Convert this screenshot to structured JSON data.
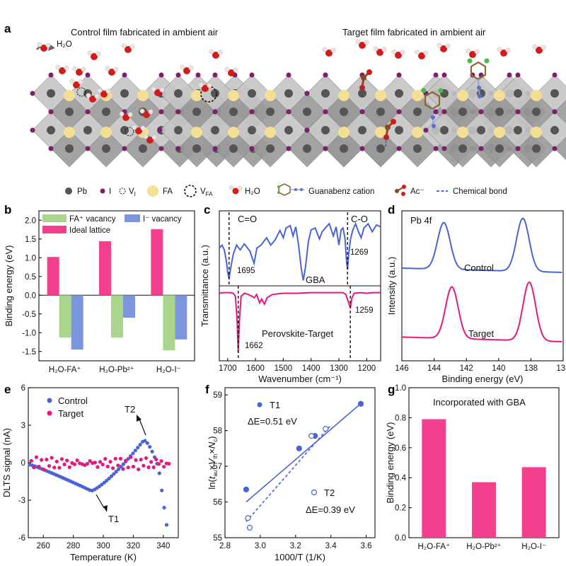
{
  "panel_letters": {
    "a": "a",
    "b": "b",
    "c": "c",
    "d": "d",
    "e": "e",
    "f": "f",
    "g": "g"
  },
  "panel_a": {
    "control_title": "Control film fabricated in ambient air",
    "target_title": "Target film fabricated in ambient air",
    "h2o_label": "H₂O",
    "legend": {
      "pb": "Pb",
      "i": "I",
      "vi": "V",
      "vi_sub": "I",
      "fa": "FA",
      "vfa": "V",
      "vfa_sub": "FA",
      "h2o": "H₂O",
      "guanabenz": "Guanabenz cation",
      "ac": "Ac⁻",
      "bond": "Chemical bond"
    },
    "colors": {
      "pb": "#555555",
      "i": "#7d1f6e",
      "fa": "#f4df95",
      "o": "#d21b1b",
      "h": "#f2e1e1",
      "c": "#8a4a22"
    }
  },
  "chart_data": [
    {
      "panel": "b",
      "type": "bar",
      "ylabel": "Binding energy (eV)",
      "ylim": [
        -1.75,
        2.25
      ],
      "yticks": [
        "2.0",
        "1.5",
        "1.0",
        "0.5",
        "0.0",
        "-0.5",
        "-1.0",
        "-1.5"
      ],
      "categories": [
        "H₂O-FA⁺",
        "H₂O-Pb²⁺",
        "H₂O-I⁻"
      ],
      "series": [
        {
          "name": "Ideal lattice",
          "color": "#f43f8e",
          "values": [
            1.02,
            1.44,
            1.76
          ]
        },
        {
          "name": "FA⁺ vacancy",
          "color": "#a9d68c",
          "values": [
            -1.13,
            -1.13,
            -1.47
          ]
        },
        {
          "name": "I⁻ vacancy",
          "color": "#7b96dd",
          "values": [
            -1.45,
            -0.6,
            -1.18
          ]
        }
      ],
      "legend": [
        "FA⁺ vacancy",
        "I⁻ vacancy",
        "Ideal lattice"
      ]
    },
    {
      "panel": "c",
      "type": "line",
      "xlabel": "Wavenumber (cm⁻¹)",
      "ylabel": "Transmittance (a.u.)",
      "xlim": [
        1730,
        1150
      ],
      "xticks": [
        "1700",
        "1600",
        "1500",
        "1400",
        "1300",
        "1200"
      ],
      "annotations": [
        "C=O",
        "C-O",
        "1695",
        "1269",
        "1662",
        "1259"
      ],
      "series": [
        {
          "name": "GBA",
          "color": "#4a63d6",
          "points": [
            [
              1730,
              0.55
            ],
            [
              1720,
              0.6
            ],
            [
              1712,
              0.52
            ],
            [
              1705,
              0.35
            ],
            [
              1700,
              0.15
            ],
            [
              1695,
              0.05
            ],
            [
              1690,
              0.2
            ],
            [
              1680,
              0.45
            ],
            [
              1668,
              0.6
            ],
            [
              1655,
              0.52
            ],
            [
              1640,
              0.62
            ],
            [
              1620,
              0.5
            ],
            [
              1605,
              0.3
            ],
            [
              1595,
              0.55
            ],
            [
              1580,
              0.6
            ],
            [
              1560,
              0.72
            ],
            [
              1545,
              0.6
            ],
            [
              1530,
              0.68
            ],
            [
              1512,
              0.84
            ],
            [
              1500,
              0.72
            ],
            [
              1490,
              0.88
            ],
            [
              1475,
              0.92
            ],
            [
              1465,
              0.75
            ],
            [
              1455,
              0.9
            ],
            [
              1445,
              0.6
            ],
            [
              1435,
              0.2
            ],
            [
              1428,
              0.02
            ],
            [
              1420,
              0.25
            ],
            [
              1410,
              0.65
            ],
            [
              1400,
              0.85
            ],
            [
              1385,
              0.88
            ],
            [
              1370,
              0.7
            ],
            [
              1360,
              0.82
            ],
            [
              1345,
              0.9
            ],
            [
              1335,
              0.95
            ],
            [
              1320,
              0.75
            ],
            [
              1310,
              0.9
            ],
            [
              1300,
              0.6
            ],
            [
              1292,
              0.85
            ],
            [
              1285,
              0.88
            ],
            [
              1278,
              0.7
            ],
            [
              1272,
              0.3
            ],
            [
              1269,
              0.2
            ],
            [
              1265,
              0.45
            ],
            [
              1258,
              0.7
            ],
            [
              1250,
              0.85
            ],
            [
              1240,
              0.95
            ],
            [
              1230,
              0.82
            ],
            [
              1220,
              0.72
            ],
            [
              1210,
              0.88
            ],
            [
              1195,
              0.95
            ],
            [
              1180,
              0.82
            ],
            [
              1165,
              0.93
            ],
            [
              1150,
              0.9
            ]
          ]
        },
        {
          "name": "Perovskite-Target",
          "color": "#e8177c",
          "points": [
            [
              1730,
              0.95
            ],
            [
              1715,
              0.96
            ],
            [
              1700,
              0.96
            ],
            [
              1690,
              0.96
            ],
            [
              1680,
              0.95
            ],
            [
              1672,
              0.9
            ],
            [
              1666,
              0.5
            ],
            [
              1662,
              0.02
            ],
            [
              1658,
              0.5
            ],
            [
              1652,
              0.9
            ],
            [
              1640,
              0.95
            ],
            [
              1625,
              0.93
            ],
            [
              1612,
              0.9
            ],
            [
              1604,
              0.88
            ],
            [
              1596,
              0.93
            ],
            [
              1585,
              0.8
            ],
            [
              1578,
              0.86
            ],
            [
              1568,
              0.78
            ],
            [
              1558,
              0.88
            ],
            [
              1540,
              0.93
            ],
            [
              1500,
              0.95
            ],
            [
              1450,
              0.95
            ],
            [
              1400,
              0.96
            ],
            [
              1350,
              0.96
            ],
            [
              1300,
              0.96
            ],
            [
              1285,
              0.96
            ],
            [
              1275,
              0.93
            ],
            [
              1265,
              0.8
            ],
            [
              1259,
              0.72
            ],
            [
              1253,
              0.88
            ],
            [
              1245,
              0.95
            ],
            [
              1220,
              0.96
            ],
            [
              1200,
              0.95
            ],
            [
              1180,
              0.96
            ],
            [
              1150,
              0.96
            ]
          ]
        }
      ]
    },
    {
      "panel": "d",
      "type": "line",
      "title": "Pb 4f",
      "xlabel": "Binding energy (eV)",
      "ylabel": "Intensity (a.u.)",
      "xlim": [
        146,
        136
      ],
      "xticks": [
        "146",
        "144",
        "142",
        "140",
        "138",
        "136"
      ],
      "series": [
        {
          "name": "Control",
          "color": "#4a63d6",
          "peaks": [
            143.4,
            138.5
          ]
        },
        {
          "name": "Target",
          "color": "#e8177c",
          "peaks": [
            142.9,
            138.1
          ]
        }
      ]
    },
    {
      "panel": "e",
      "type": "scatter",
      "xlabel": "Temperature (K)",
      "ylabel": "DLTS signal (nA)",
      "xlim": [
        250,
        350
      ],
      "ylim": [
        -6,
        6
      ],
      "xticks": [
        "260",
        "280",
        "300",
        "320",
        "340"
      ],
      "yticks": [
        "6",
        "3",
        "0",
        "-3",
        "-6"
      ],
      "annotations": [
        "T2",
        "T1"
      ],
      "series": [
        {
          "name": "Control",
          "color": "#4a63d6"
        },
        {
          "name": "Target",
          "color": "#e8177c"
        }
      ]
    },
    {
      "panel": "f",
      "type": "scatter",
      "xlabel": "1000/T (1/K)",
      "ylabel": "ln(tₐᵤ×Vₜₕ×Nᶜ)",
      "ylabel_parts": {
        "pre": "ln(",
        "t": "t",
        "t_sub": "au",
        "mid1": "×",
        "v": "V",
        "v_sub": "th",
        "mid2": "×",
        "n": "N",
        "n_sub": "c",
        "post": ")"
      },
      "xlim": [
        2.8,
        3.65
      ],
      "ylim": [
        55,
        59.2
      ],
      "xticks": [
        "2.8",
        "3.0",
        "3.2",
        "3.4",
        "3.6"
      ],
      "yticks": [
        "59",
        "58",
        "57",
        "56",
        "55"
      ],
      "series": [
        {
          "name": "T1",
          "label": "ΔE=0.51 eV",
          "color": "#4a63d6",
          "filled": true,
          "x": [
            2.92,
            3.22,
            3.31,
            3.57
          ],
          "y": [
            56.35,
            57.5,
            57.85,
            58.75
          ]
        },
        {
          "name": "T2",
          "label": "ΔE=0.39 eV",
          "color": "#4a63d6",
          "filled": false,
          "x": [
            2.93,
            2.94,
            3.29,
            3.37
          ],
          "y": [
            55.55,
            55.28,
            57.85,
            58.05
          ]
        }
      ]
    },
    {
      "panel": "g",
      "type": "bar",
      "title": "Incorporated with GBA",
      "ylabel": "Binding energy (eV)",
      "ylim": [
        0.0,
        1.0
      ],
      "yticks": [
        "1.0",
        "0.8",
        "0.6",
        "0.4",
        "0.2",
        "0.0"
      ],
      "categories": [
        "H₂O-FA⁺",
        "H₂O-Pb²⁺",
        "H₂O-I⁻"
      ],
      "values": [
        0.79,
        0.37,
        0.47
      ],
      "color": "#f43f8e"
    }
  ]
}
